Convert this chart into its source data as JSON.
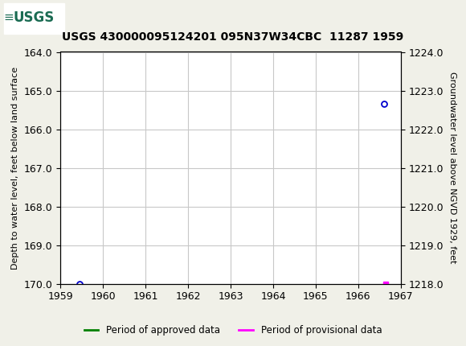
{
  "title": "USGS 430000095124201 095N37W34CBC  11287 1959",
  "ylabel_left": "Depth to water level, feet below land surface",
  "ylabel_right": "Groundwater level above NGVD 1929, feet",
  "xlim": [
    1959.0,
    1967.0
  ],
  "ylim_left": [
    164.0,
    170.0
  ],
  "ylim_right": [
    1224.0,
    1218.0
  ],
  "yticks_left": [
    164.0,
    165.0,
    166.0,
    167.0,
    168.0,
    169.0,
    170.0
  ],
  "yticks_right": [
    1224.0,
    1223.0,
    1222.0,
    1221.0,
    1220.0,
    1219.0,
    1218.0
  ],
  "xticks": [
    1959,
    1960,
    1961,
    1962,
    1963,
    1964,
    1965,
    1966,
    1967
  ],
  "approved_points_x": [
    1959.45
  ],
  "approved_points_y": [
    170.0
  ],
  "provisional_point1_x": 1966.6,
  "provisional_point1_y": 165.35,
  "provisional_point2_x": 1966.65,
  "provisional_point2_y": 170.0,
  "header_color": "#1a6b52",
  "background_color": "#f0f0e8",
  "plot_bg_color": "#ffffff",
  "grid_color": "#c8c8c8",
  "approved_color": "#008000",
  "provisional_color": "#ff00ff",
  "approved_marker_color": "#0000cd",
  "legend_approved": "Period of approved data",
  "legend_provisional": "Period of provisional data"
}
